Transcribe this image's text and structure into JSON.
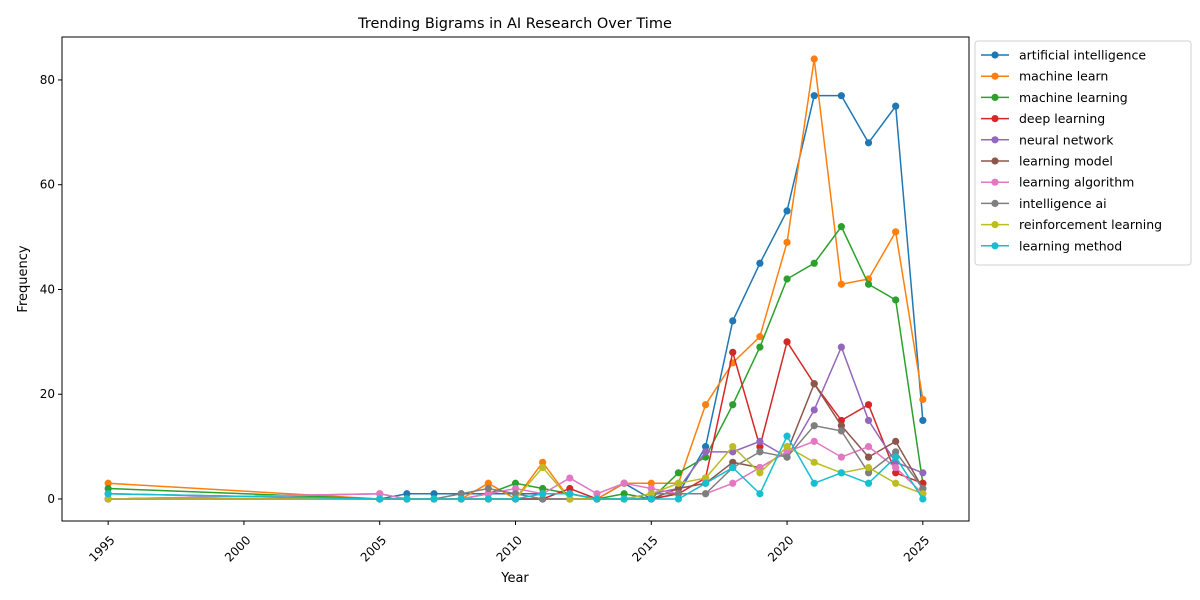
{
  "chart_data": {
    "type": "line",
    "title": "Trending Bigrams in AI Research Over Time",
    "xlabel": "Year",
    "ylabel": "Frequency",
    "xlim": [
      1993.3,
      2026.7
    ],
    "ylim": [
      -4.2,
      88.2
    ],
    "xticks": [
      1995,
      2000,
      2005,
      2010,
      2015,
      2020,
      2025
    ],
    "yticks": [
      0,
      20,
      40,
      60,
      80
    ],
    "grid": false,
    "legend_position": "outside-right",
    "x": [
      1995,
      2005,
      2006,
      2007,
      2008,
      2009,
      2010,
      2011,
      2012,
      2013,
      2014,
      2015,
      2016,
      2017,
      2018,
      2019,
      2020,
      2021,
      2022,
      2023,
      2024,
      2025
    ],
    "series": [
      {
        "name": "artificial intelligence",
        "color": "#1f77b4",
        "values": [
          1,
          0,
          1,
          1,
          1,
          1,
          1,
          1,
          1,
          0,
          3,
          0,
          1,
          10,
          34,
          45,
          55,
          77,
          77,
          68,
          75,
          15
        ]
      },
      {
        "name": "machine learn",
        "color": "#ff7f0e",
        "values": [
          3,
          0,
          0,
          0,
          0,
          3,
          0,
          7,
          0,
          0,
          3,
          3,
          3,
          18,
          26,
          31,
          49,
          84,
          41,
          42,
          51,
          19
        ]
      },
      {
        "name": "machine learning",
        "color": "#2ca02c",
        "values": [
          2,
          0,
          0,
          0,
          0,
          1,
          3,
          2,
          1,
          0,
          1,
          0,
          5,
          8,
          18,
          29,
          42,
          45,
          52,
          41,
          38,
          3
        ]
      },
      {
        "name": "deep learning",
        "color": "#d62728",
        "values": [
          0,
          0,
          0,
          0,
          0,
          0,
          0,
          0,
          2,
          0,
          0,
          0,
          1,
          4,
          28,
          10,
          30,
          22,
          15,
          18,
          5,
          3
        ]
      },
      {
        "name": "neural network",
        "color": "#9467bd",
        "values": [
          0,
          1,
          0,
          0,
          0,
          0,
          0,
          0,
          0,
          0,
          0,
          1,
          2,
          9,
          9,
          11,
          8,
          17,
          29,
          15,
          7,
          5
        ]
      },
      {
        "name": "learning model",
        "color": "#8c564b",
        "values": [
          0,
          0,
          0,
          0,
          0,
          0,
          0,
          0,
          0,
          0,
          0,
          0,
          2,
          3,
          7,
          6,
          9,
          22,
          14,
          8,
          11,
          2
        ]
      },
      {
        "name": "learning algorithm",
        "color": "#e377c2",
        "values": [
          0,
          1,
          0,
          0,
          0,
          1,
          2,
          1,
          4,
          1,
          3,
          2,
          1,
          1,
          3,
          6,
          9,
          11,
          8,
          10,
          6,
          1
        ]
      },
      {
        "name": "intelligence ai",
        "color": "#7f7f7f",
        "values": [
          0,
          0,
          0,
          0,
          1,
          2,
          1,
          0,
          0,
          0,
          0,
          1,
          1,
          1,
          6,
          9,
          8,
          14,
          13,
          5,
          9,
          2
        ]
      },
      {
        "name": "reinforcement learning",
        "color": "#bcbd22",
        "values": [
          0,
          0,
          0,
          0,
          0,
          0,
          0,
          6,
          0,
          0,
          0,
          1,
          3,
          4,
          10,
          5,
          10,
          7,
          5,
          6,
          3,
          1
        ]
      },
      {
        "name": "learning method",
        "color": "#17becf",
        "values": [
          1,
          0,
          0,
          0,
          0,
          0,
          0,
          1,
          1,
          0,
          0,
          0,
          0,
          3,
          6,
          1,
          12,
          3,
          5,
          3,
          8,
          0
        ]
      }
    ]
  }
}
